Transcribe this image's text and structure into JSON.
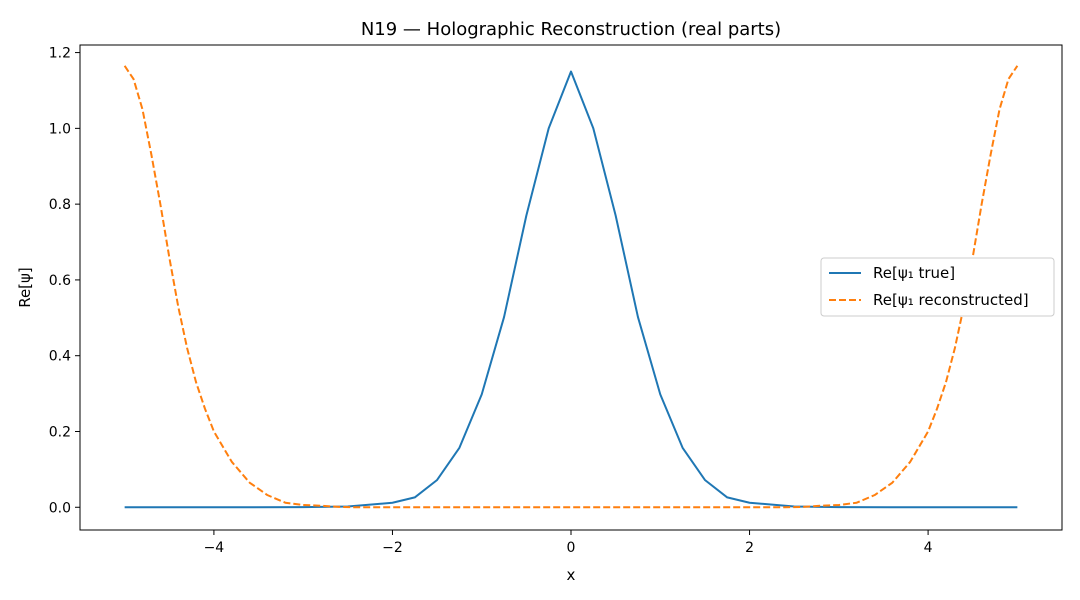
{
  "chart_data": {
    "type": "line",
    "title": "N19 — Holographic Reconstruction (real parts)",
    "xlabel": "x",
    "ylabel": "Re[ψ]",
    "xlim": [
      -5.5,
      5.5
    ],
    "ylim": [
      -0.06,
      1.22
    ],
    "xticks": [
      -4,
      -2,
      0,
      2,
      4
    ],
    "xtick_labels": [
      "−4",
      "−2",
      "0",
      "2",
      "4"
    ],
    "yticks": [
      0.0,
      0.2,
      0.4,
      0.6,
      0.8,
      1.0,
      1.2
    ],
    "ytick_labels": [
      "0.0",
      "0.2",
      "0.4",
      "0.6",
      "0.8",
      "1.0",
      "1.2"
    ],
    "grid": false,
    "legend_position": "center-right",
    "series": [
      {
        "name": "Re[ψ₁ true]",
        "color": "#1f77b4",
        "style": "solid",
        "x": [
          -5,
          -4,
          -3,
          -2.5,
          -2,
          -1.75,
          -1.5,
          -1.25,
          -1,
          -0.75,
          -0.5,
          -0.25,
          0,
          0.25,
          0.5,
          0.75,
          1,
          1.25,
          1.5,
          1.75,
          2,
          2.5,
          3,
          4,
          5
        ],
        "y": [
          0.0,
          0.0,
          0.0003,
          0.002,
          0.012,
          0.026,
          0.072,
          0.157,
          0.298,
          0.502,
          0.77,
          1.0,
          1.15,
          1.0,
          0.77,
          0.502,
          0.298,
          0.157,
          0.072,
          0.026,
          0.012,
          0.002,
          0.0003,
          0.0,
          0.0
        ]
      },
      {
        "name": "Re[ψ₁ reconstructed]",
        "color": "#ff7f0e",
        "style": "dashed",
        "x": [
          -5,
          -4.9,
          -4.8,
          -4.7,
          -4.6,
          -4.5,
          -4.4,
          -4.3,
          -4.2,
          -4.1,
          -4.0,
          -3.8,
          -3.6,
          -3.4,
          -3.2,
          -3.0,
          -2.8,
          -2.6,
          -2.4,
          -2.0,
          -1.0,
          0,
          1.0,
          2.0,
          2.4,
          2.6,
          2.8,
          3.0,
          3.2,
          3.4,
          3.6,
          3.8,
          4.0,
          4.1,
          4.2,
          4.3,
          4.4,
          4.5,
          4.6,
          4.7,
          4.8,
          4.9,
          5.0
        ],
        "y": [
          1.165,
          1.13,
          1.05,
          0.93,
          0.8,
          0.66,
          0.53,
          0.42,
          0.33,
          0.26,
          0.2,
          0.12,
          0.065,
          0.032,
          0.012,
          0.006,
          0.004,
          0.001,
          0.0,
          0.0,
          0.0,
          0.0,
          0.0,
          0.0,
          0.0,
          0.001,
          0.004,
          0.006,
          0.012,
          0.032,
          0.065,
          0.12,
          0.2,
          0.26,
          0.33,
          0.42,
          0.53,
          0.66,
          0.8,
          0.93,
          1.05,
          1.13,
          1.165
        ]
      }
    ]
  }
}
